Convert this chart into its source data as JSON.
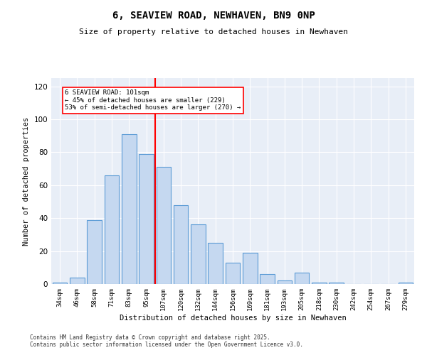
{
  "title": "6, SEAVIEW ROAD, NEWHAVEN, BN9 0NP",
  "subtitle": "Size of property relative to detached houses in Newhaven",
  "xlabel": "Distribution of detached houses by size in Newhaven",
  "ylabel": "Number of detached properties",
  "bar_labels": [
    "34sqm",
    "46sqm",
    "58sqm",
    "71sqm",
    "83sqm",
    "95sqm",
    "107sqm",
    "120sqm",
    "132sqm",
    "144sqm",
    "156sqm",
    "169sqm",
    "181sqm",
    "193sqm",
    "205sqm",
    "218sqm",
    "230sqm",
    "242sqm",
    "254sqm",
    "267sqm",
    "279sqm"
  ],
  "bar_values": [
    1,
    4,
    39,
    66,
    91,
    79,
    71,
    48,
    36,
    25,
    13,
    19,
    6,
    2,
    7,
    1,
    1,
    0,
    0,
    0,
    1
  ],
  "bar_color": "#c5d8f0",
  "bar_edgecolor": "#5b9bd5",
  "vline_x": 5.5,
  "vline_color": "red",
  "annotation_text": "6 SEAVIEW ROAD: 101sqm\n← 45% of detached houses are smaller (229)\n53% of semi-detached houses are larger (270) →",
  "annotation_box_color": "white",
  "annotation_box_edgecolor": "red",
  "ylim": [
    0,
    125
  ],
  "yticks": [
    0,
    20,
    40,
    60,
    80,
    100,
    120
  ],
  "background_color": "#e8eef7",
  "footer_line1": "Contains HM Land Registry data © Crown copyright and database right 2025.",
  "footer_line2": "Contains public sector information licensed under the Open Government Licence v3.0.",
  "figsize": [
    6.0,
    5.0
  ],
  "dpi": 100
}
